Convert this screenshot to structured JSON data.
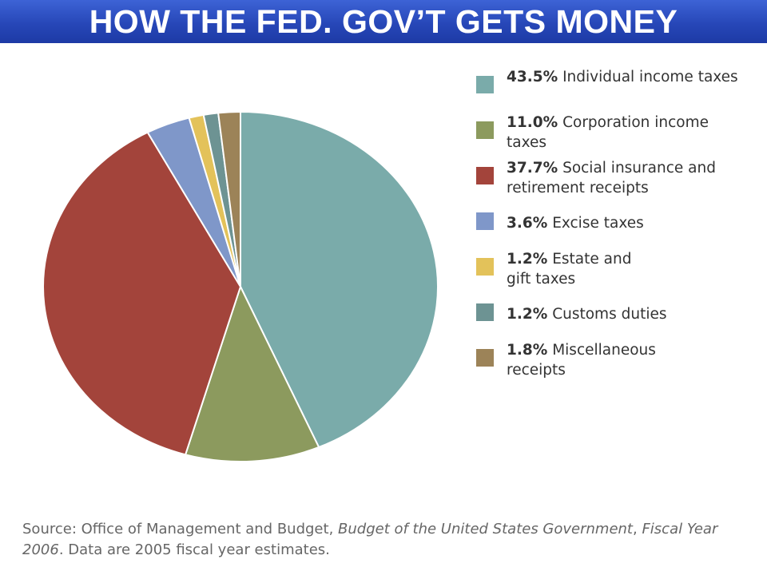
{
  "header": {
    "title": "HOW THE FED. GOV’T GETS MONEY"
  },
  "chart_data": {
    "type": "pie",
    "title": "",
    "slices": [
      {
        "percent_label": "43.5%",
        "label": "Individual income taxes",
        "value": 43.5,
        "color": "#7aabaa"
      },
      {
        "percent_label": "11.0%",
        "label": "Corporation income taxes",
        "value": 11.0,
        "color": "#8c9a5e"
      },
      {
        "percent_label": "37.7%",
        "label": "Social insurance and retirement receipts",
        "value": 37.7,
        "color": "#a3443b"
      },
      {
        "percent_label": "3.6%",
        "label": "Excise taxes",
        "value": 3.6,
        "color": "#7f97c9"
      },
      {
        "percent_label": "1.2%",
        "label": "Estate and gift taxes",
        "value": 1.2,
        "color": "#e3c25a"
      },
      {
        "percent_label": "1.2%",
        "label": "Customs duties",
        "value": 1.2,
        "color": "#6d9393"
      },
      {
        "percent_label": "1.8%",
        "label": "Miscellaneous receipts",
        "value": 1.8,
        "color": "#9c8358"
      }
    ],
    "legend_position": "right"
  },
  "source": {
    "prefix": "Source: Office of Management and Budget, ",
    "italic1": "Budget of the United States Government",
    "middle": ", ",
    "italic2": "Fiscal Year 2006",
    "suffix": ". Data are 2005 fiscal year estimates."
  }
}
